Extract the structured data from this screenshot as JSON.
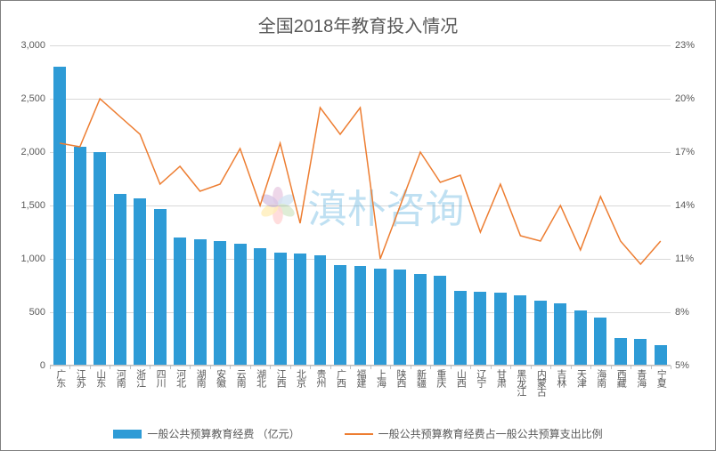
{
  "chart": {
    "type": "bar+line",
    "title": "全国2018年教育投入情况",
    "title_fontsize": 20,
    "title_color": "#595959",
    "background_color": "#ffffff",
    "border_color": "#7f7f7f",
    "grid_color": "#d9d9d9",
    "axis_label_color": "#595959",
    "axis_label_fontsize": 11,
    "bar_color": "#2e9bd6",
    "line_color": "#ed7d31",
    "line_width": 1.5,
    "bar_width_ratio": 0.62,
    "y_left": {
      "min": 0,
      "max": 3000,
      "step": 500,
      "format": "comma"
    },
    "y_right": {
      "min": 5,
      "max": 23,
      "step": 3,
      "format": "percent"
    },
    "categories": [
      "广东",
      "江苏",
      "山东",
      "河南",
      "浙江",
      "四川",
      "河北",
      "湖南",
      "安徽",
      "云南",
      "湖北",
      "江西",
      "北京",
      "贵州",
      "广西",
      "福建",
      "上海",
      "陕西",
      "新疆",
      "重庆",
      "山西",
      "辽宁",
      "甘肃",
      "黑龙江",
      "内蒙古",
      "吉林",
      "天津",
      "海南",
      "西藏",
      "青海",
      "宁夏"
    ],
    "bar_values": [
      2800,
      2050,
      2000,
      1610,
      1570,
      1470,
      1200,
      1180,
      1170,
      1140,
      1100,
      1060,
      1050,
      1030,
      940,
      930,
      910,
      900,
      860,
      840,
      700,
      690,
      680,
      660,
      610,
      580,
      520,
      450,
      260,
      250,
      190
    ],
    "line_values": [
      17.5,
      17.3,
      20.0,
      19.0,
      18.0,
      15.2,
      16.2,
      14.8,
      15.2,
      17.2,
      14.0,
      17.5,
      13.0,
      19.5,
      18.0,
      19.5,
      11.0,
      14.0,
      17.0,
      15.3,
      15.7,
      12.5,
      15.2,
      12.3,
      12.0,
      14.0,
      11.5,
      14.5,
      12.0,
      10.7,
      12.0
    ],
    "watermark_text": "滇朴咨询",
    "legend": {
      "bar_label": "一般公共预算教育经费 （亿元）",
      "line_label": "一般公共预算教育经费占一般公共预算支出比例"
    }
  }
}
